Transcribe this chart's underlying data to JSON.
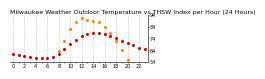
{
  "title": "Milwaukee Weather Outdoor Temperature vs THSW Index per Hour (24 Hours)",
  "hours": [
    0,
    1,
    2,
    3,
    4,
    5,
    6,
    7,
    8,
    9,
    10,
    11,
    12,
    13,
    14,
    15,
    16,
    17,
    18,
    19,
    20,
    21,
    22,
    23
  ],
  "temp": [
    61,
    60,
    59,
    58,
    57,
    57,
    57,
    58,
    61,
    65,
    69,
    73,
    76,
    78,
    79,
    79,
    78,
    76,
    74,
    72,
    70,
    68,
    66,
    65
  ],
  "thsw": [
    null,
    null,
    null,
    null,
    null,
    null,
    null,
    null,
    63,
    72,
    82,
    88,
    91,
    90,
    89,
    88,
    84,
    79,
    72,
    64,
    56,
    null,
    null,
    null
  ],
  "temp_color": "#cc0000",
  "thsw_color": "#ff8800",
  "bg_color": "#ffffff",
  "grid_color": "#888888",
  "ylim_min": 54,
  "ylim_max": 94,
  "ytick_labels": [
    "54",
    "64",
    "74",
    "84",
    "94"
  ],
  "ytick_vals": [
    54,
    64,
    74,
    84,
    94
  ],
  "title_fontsize": 4.5,
  "tick_fontsize": 3.5,
  "marker_size": 1.2,
  "grid_positions": [
    0,
    2,
    4,
    6,
    8,
    10,
    12,
    14,
    16,
    18,
    20,
    22
  ]
}
